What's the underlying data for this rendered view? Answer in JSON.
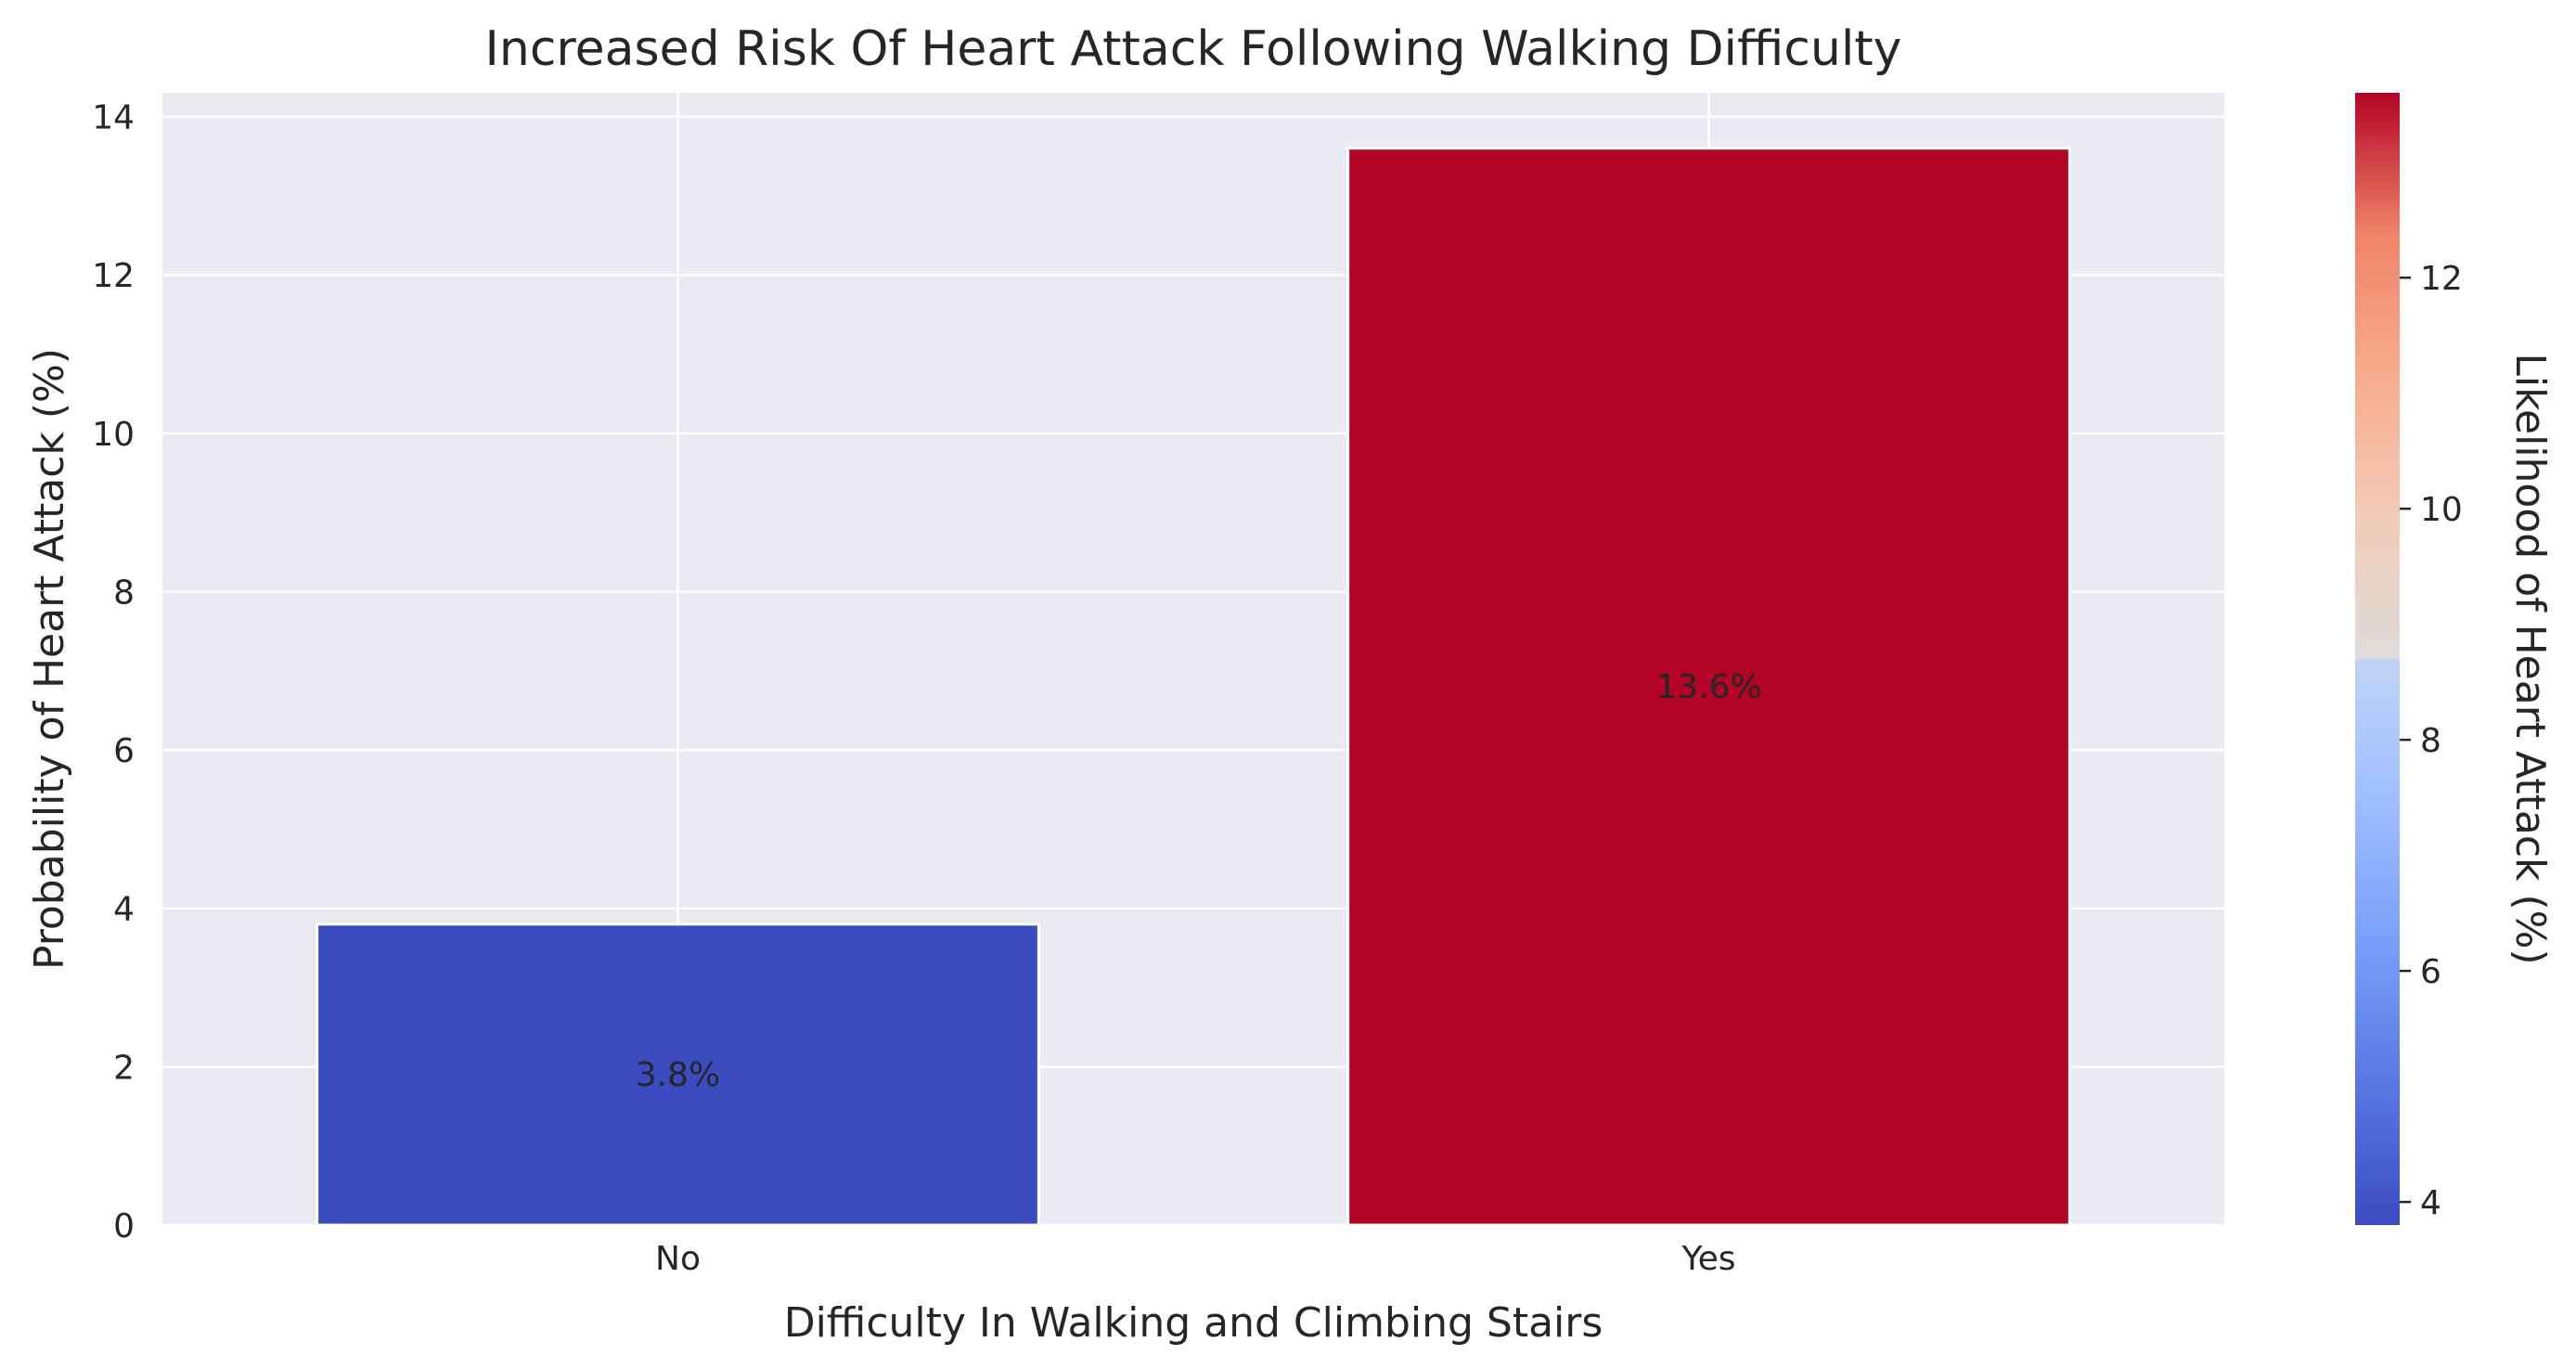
{
  "chart_data": {
    "type": "bar",
    "title": "Increased Risk Of Heart Attack Following Walking Difficulty",
    "xlabel": "Difficulty In Walking and Climbing Stairs",
    "ylabel": "Probability of Heart Attack (%)",
    "categories": [
      "No",
      "Yes"
    ],
    "values": [
      3.8,
      13.6
    ],
    "data_labels": [
      "3.8%",
      "13.6%"
    ],
    "ylim": [
      0,
      14.3
    ],
    "yticks": [
      0,
      2,
      4,
      6,
      8,
      10,
      12,
      14
    ],
    "grid": true,
    "colorbar": {
      "label": "Likelihood of Heart Attack (%)",
      "colormap": "coolwarm",
      "range": [
        3.8,
        13.6
      ],
      "ticks": [
        4,
        6,
        8,
        10,
        12
      ]
    },
    "colors": {
      "low": "#3b4cc0",
      "high": "#b40426",
      "background": "#eaeaf2",
      "grid": "#ffffff"
    }
  }
}
